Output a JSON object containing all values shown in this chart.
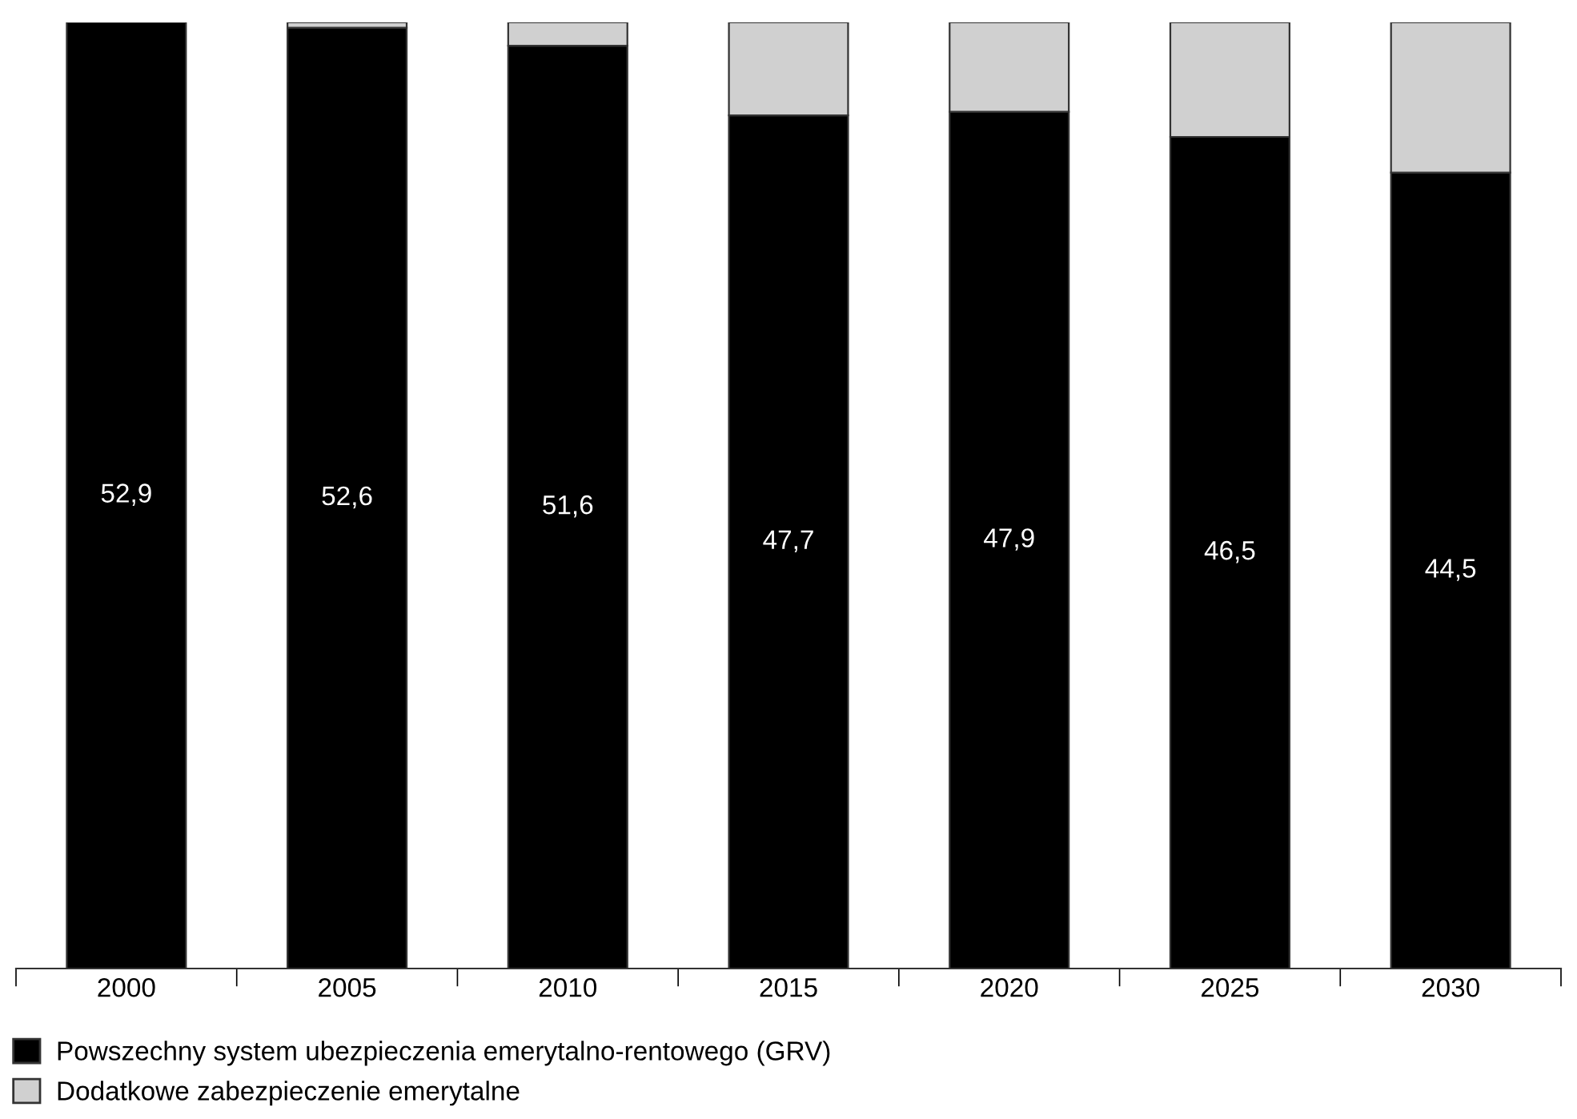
{
  "chart_data": {
    "type": "bar",
    "stacked": true,
    "legend": "bottom left",
    "categories": [
      "2000",
      "2005",
      "2010",
      "2015",
      "2020",
      "2025",
      "2030"
    ],
    "series": [
      {
        "name": "Powszechny system ubezpieczenia emerytalno-rentowego (GRV)",
        "color": "#000000",
        "values": [
          52.9,
          52.6,
          51.6,
          47.7,
          47.9,
          46.5,
          44.5
        ],
        "value_labels": [
          "52,9",
          "52,6",
          "51,6",
          "47,7",
          "47,9",
          "46,5",
          "44,5"
        ]
      },
      {
        "name": "Dodatkowe zabezpieczenie emerytalne",
        "color": "#d0d0d0",
        "values": [
          null,
          0.3,
          1.3,
          5.2,
          5.0,
          6.4,
          8.4
        ]
      }
    ]
  }
}
